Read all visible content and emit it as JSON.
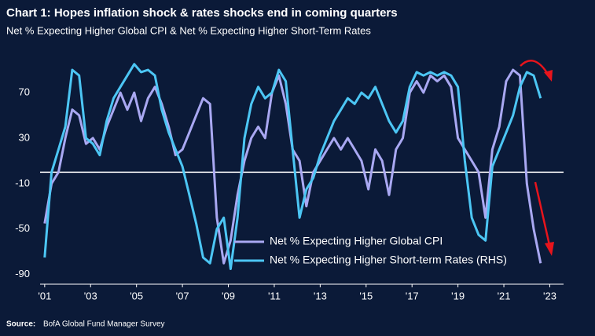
{
  "chart_data": {
    "type": "line",
    "title": "Chart 1: Hopes inflation shock & rates shocks end in coming quarters",
    "subtitle": "Net % Expecting Higher Global CPI & Net % Expecting Higher Short-Term Rates",
    "source_label": "Source:",
    "source": "BofA Global Fund Manager Survey",
    "x": [
      2001.0,
      2001.3,
      2001.6,
      2001.9,
      2002.2,
      2002.5,
      2002.8,
      2003.1,
      2003.4,
      2003.7,
      2004.0,
      2004.3,
      2004.6,
      2004.9,
      2005.2,
      2005.5,
      2005.8,
      2006.1,
      2006.4,
      2006.7,
      2007.0,
      2007.3,
      2007.6,
      2007.9,
      2008.2,
      2008.5,
      2008.8,
      2009.1,
      2009.4,
      2009.7,
      2010.0,
      2010.3,
      2010.6,
      2010.9,
      2011.2,
      2011.5,
      2011.8,
      2012.1,
      2012.4,
      2012.7,
      2013.0,
      2013.3,
      2013.6,
      2013.9,
      2014.2,
      2014.5,
      2014.8,
      2015.1,
      2015.4,
      2015.7,
      2016.0,
      2016.3,
      2016.6,
      2016.9,
      2017.2,
      2017.5,
      2017.8,
      2018.1,
      2018.4,
      2018.7,
      2019.0,
      2019.3,
      2019.6,
      2019.9,
      2020.2,
      2020.5,
      2020.8,
      2021.1,
      2021.4,
      2021.7,
      2022.0,
      2022.3,
      2022.6
    ],
    "series": [
      {
        "name": "Net % Expecting Higher Global CPI",
        "color": "#a9a8f2",
        "values": [
          -45,
          -10,
          0,
          30,
          55,
          50,
          25,
          30,
          20,
          40,
          55,
          70,
          55,
          70,
          45,
          65,
          75,
          60,
          40,
          15,
          20,
          35,
          50,
          65,
          60,
          -40,
          -80,
          -60,
          -20,
          10,
          30,
          40,
          30,
          70,
          85,
          60,
          20,
          10,
          -30,
          0,
          10,
          20,
          30,
          20,
          30,
          20,
          10,
          -15,
          20,
          10,
          -20,
          20,
          30,
          70,
          80,
          70,
          85,
          80,
          85,
          75,
          30,
          20,
          10,
          0,
          -40,
          20,
          40,
          80,
          90,
          85,
          -10,
          -50,
          -80
        ]
      },
      {
        "name": "Net % Expecting Higher Short-term Rates (RHS)",
        "color": "#4cc6f4",
        "values": [
          -75,
          0,
          20,
          40,
          90,
          85,
          30,
          25,
          15,
          45,
          65,
          75,
          85,
          95,
          88,
          90,
          85,
          55,
          35,
          20,
          5,
          -20,
          -45,
          -75,
          -80,
          -50,
          -40,
          -85,
          -40,
          30,
          60,
          75,
          65,
          70,
          90,
          80,
          20,
          -40,
          -15,
          -5,
          15,
          30,
          45,
          55,
          65,
          60,
          70,
          65,
          75,
          60,
          45,
          35,
          45,
          75,
          88,
          85,
          88,
          85,
          88,
          85,
          75,
          10,
          -40,
          -55,
          -60,
          5,
          20,
          35,
          50,
          75,
          88,
          85,
          65
        ]
      }
    ],
    "xlim": [
      2000.8,
      2023.6
    ],
    "xticks": [
      {
        "value": 2001,
        "label": "'01"
      },
      {
        "value": 2003,
        "label": "'03"
      },
      {
        "value": 2005,
        "label": "'05"
      },
      {
        "value": 2007,
        "label": "'07"
      },
      {
        "value": 2009,
        "label": "'09"
      },
      {
        "value": 2011,
        "label": "'11"
      },
      {
        "value": 2013,
        "label": "'13"
      },
      {
        "value": 2015,
        "label": "'15"
      },
      {
        "value": 2017,
        "label": "'17"
      },
      {
        "value": 2019,
        "label": "'19"
      },
      {
        "value": 2021,
        "label": "'21"
      },
      {
        "value": 2023,
        "label": "'23"
      }
    ],
    "ylim": [
      -95,
      100
    ],
    "yticks": [
      70,
      30,
      -10,
      -50,
      -90
    ],
    "reference_line": 0,
    "grid": false,
    "legend": "bottom"
  }
}
